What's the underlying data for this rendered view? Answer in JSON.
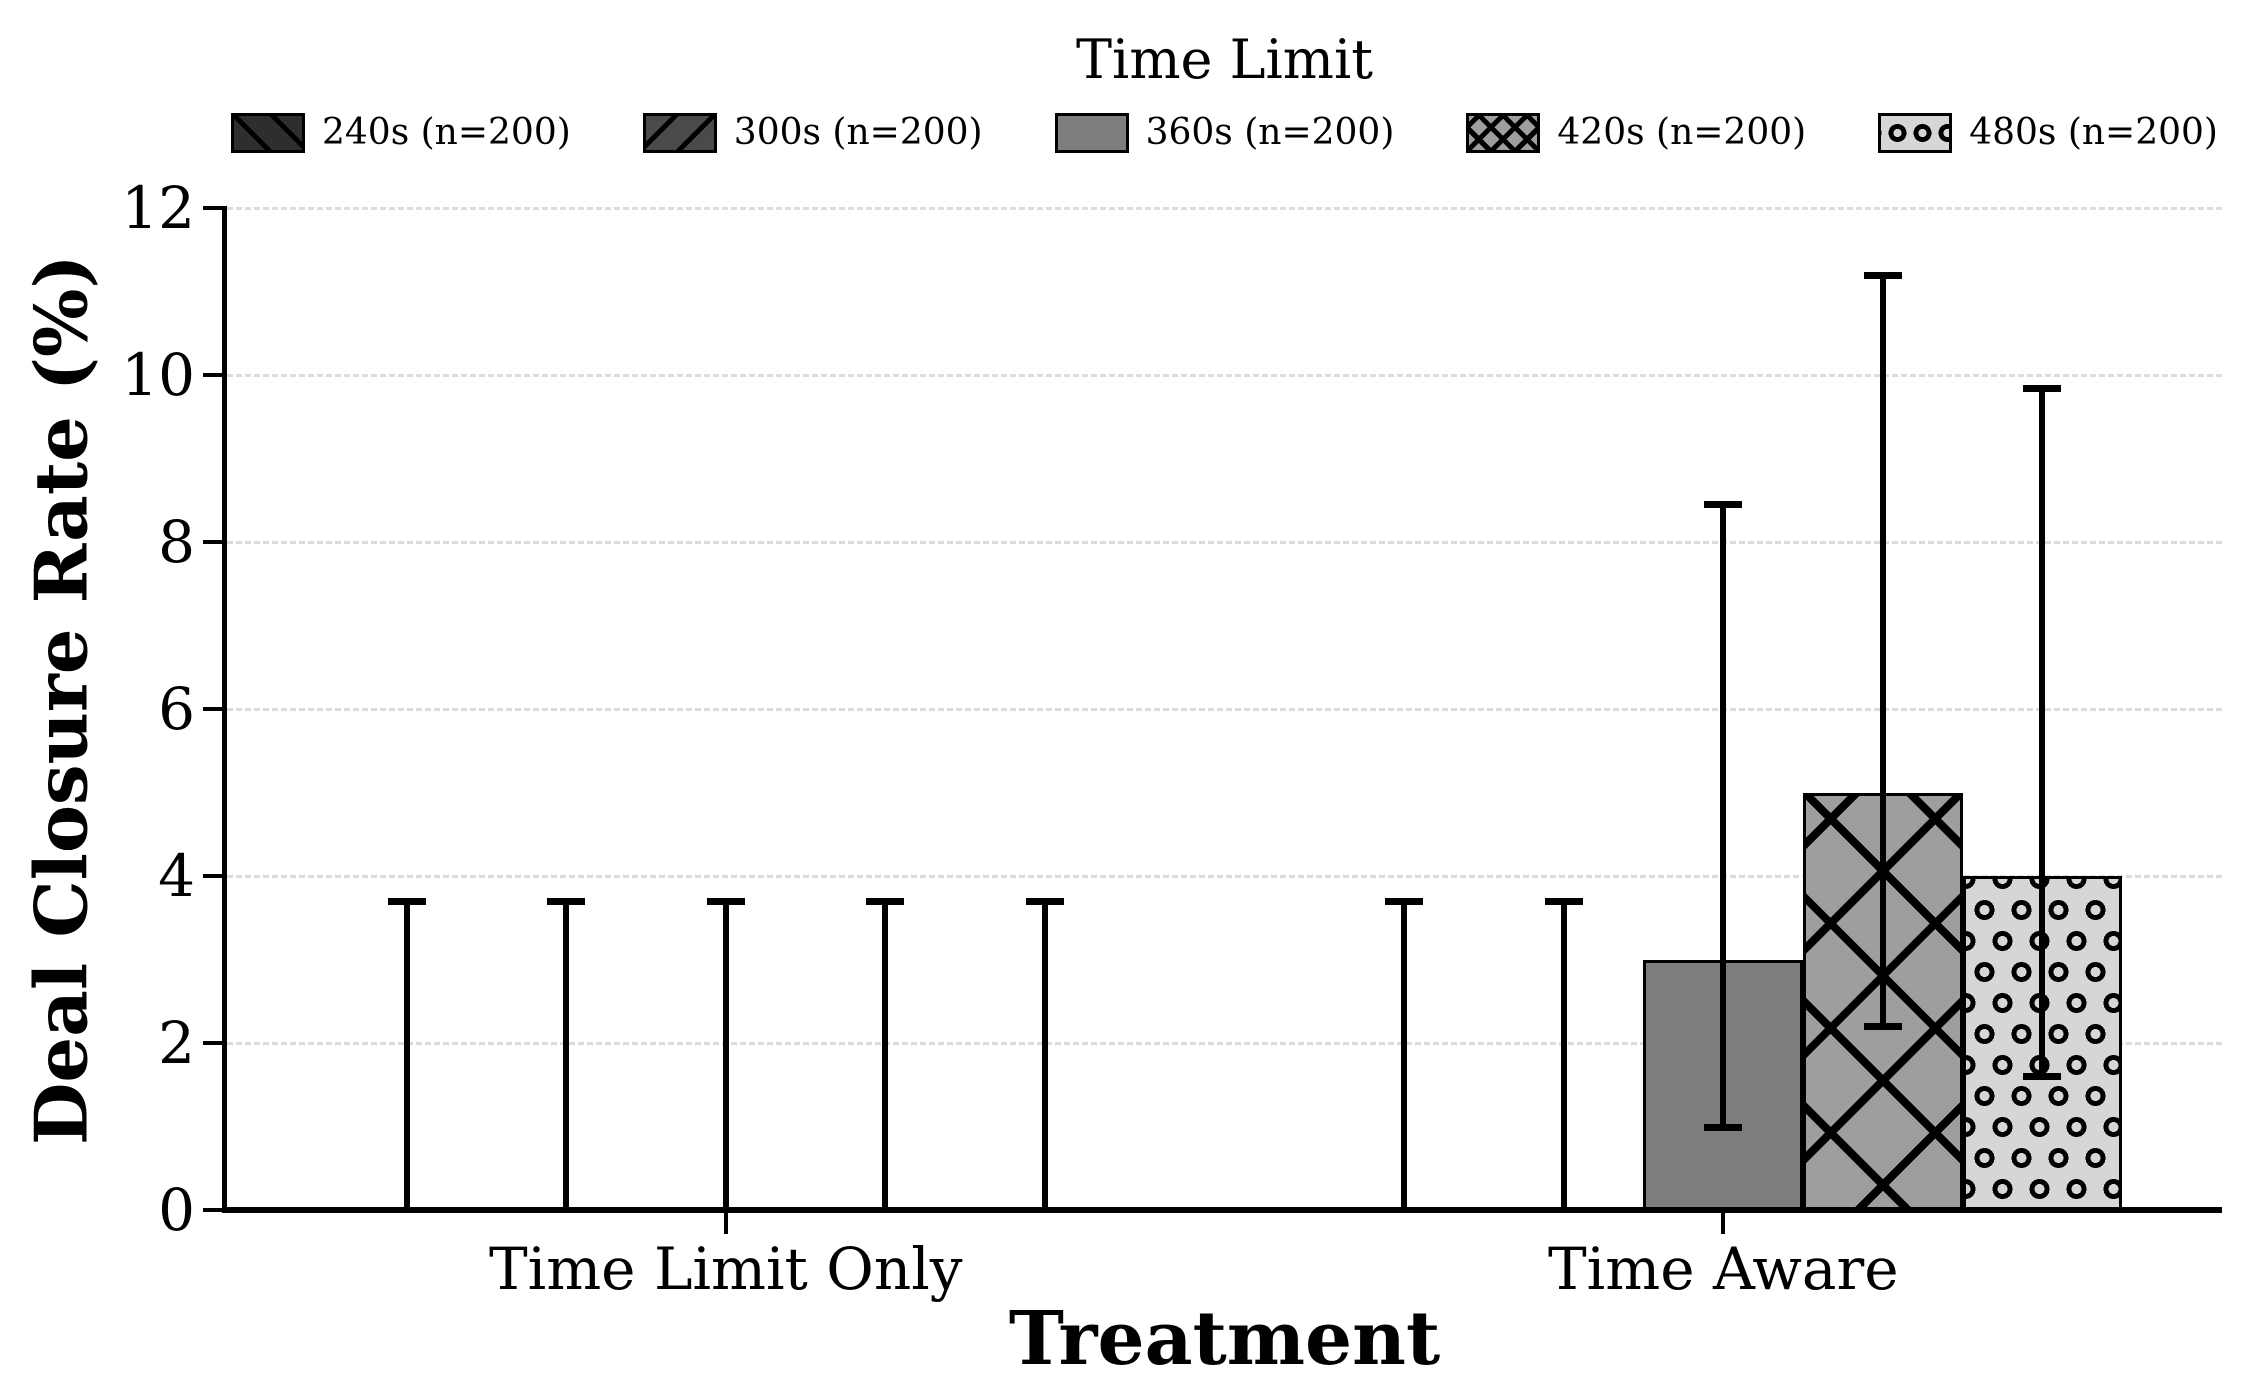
{
  "figure": {
    "background": "#ffffff"
  },
  "chart_data": {
    "type": "bar",
    "title": "Time Limit",
    "xlabel": "Treatment",
    "ylabel": "Deal Closure Rate (%)",
    "categories": [
      "Time Limit Only",
      "Time Aware"
    ],
    "ylim": [
      0,
      12
    ],
    "yticks": [
      0,
      2,
      4,
      6,
      8,
      10,
      12
    ],
    "grid": "horizontal-dashed",
    "legend_position": "top",
    "legend_title": "Time Limit",
    "series": [
      {
        "name": "240s (n=200)",
        "values": [
          0,
          0
        ],
        "ci_low": [
          0,
          0
        ],
        "ci_high": [
          3.7,
          3.7
        ],
        "fill": "#2e2e2e",
        "hatch": "fwd"
      },
      {
        "name": "300s (n=200)",
        "values": [
          0,
          0
        ],
        "ci_low": [
          0,
          0
        ],
        "ci_high": [
          3.7,
          3.7
        ],
        "fill": "#4a4a4a",
        "hatch": "back"
      },
      {
        "name": "360s (n=200)",
        "values": [
          0,
          3.0
        ],
        "ci_low": [
          0,
          1.0
        ],
        "ci_high": [
          3.7,
          8.45
        ],
        "fill": "#7d7d7d",
        "hatch": "none"
      },
      {
        "name": "420s (n=200)",
        "values": [
          0,
          5.0
        ],
        "ci_low": [
          0,
          2.2
        ],
        "ci_high": [
          3.7,
          11.2
        ],
        "fill": "#9e9e9e",
        "hatch": "x"
      },
      {
        "name": "480s (n=200)",
        "values": [
          0,
          4.0
        ],
        "ci_low": [
          0,
          1.6
        ],
        "ci_high": [
          3.7,
          9.85
        ],
        "fill": "#d6d6d6",
        "hatch": "o"
      }
    ]
  },
  "colors": {
    "grid": "#dcdcdc",
    "axis": "#000000",
    "text": "#000000",
    "background": "#ffffff"
  }
}
